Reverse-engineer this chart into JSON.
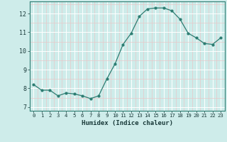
{
  "x": [
    0,
    1,
    2,
    3,
    4,
    5,
    6,
    7,
    8,
    9,
    10,
    11,
    12,
    13,
    14,
    15,
    16,
    17,
    18,
    19,
    20,
    21,
    22,
    23
  ],
  "y": [
    8.2,
    7.9,
    7.9,
    7.6,
    7.75,
    7.7,
    7.6,
    7.45,
    7.6,
    8.5,
    9.3,
    10.35,
    10.95,
    11.85,
    12.25,
    12.3,
    12.3,
    12.15,
    11.7,
    10.95,
    10.7,
    10.4,
    10.35,
    10.7
  ],
  "xlabel": "Humidex (Indice chaleur)",
  "ylim": [
    6.8,
    12.65
  ],
  "xlim": [
    -0.5,
    23.5
  ],
  "yticks": [
    7,
    8,
    9,
    10,
    11,
    12
  ],
  "xticks": [
    0,
    1,
    2,
    3,
    4,
    5,
    6,
    7,
    8,
    9,
    10,
    11,
    12,
    13,
    14,
    15,
    16,
    17,
    18,
    19,
    20,
    21,
    22,
    23
  ],
  "line_color": "#2d7d72",
  "marker_color": "#2d7d72",
  "bg_color": "#ceecea",
  "grid_major_color": "#ffffff",
  "grid_minor_color": "#e8c8c8"
}
